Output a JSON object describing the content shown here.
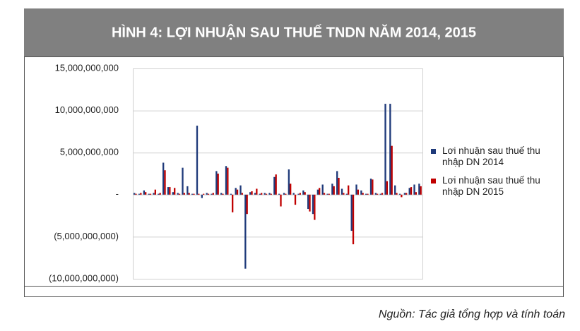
{
  "chart_data": {
    "type": "bar",
    "title": "HÌNH 4: LỢI NHUẬN SAU THUẾ TNDN NĂM 2014, 2015",
    "source": "Nguồn:  Tác giả tổng hợp và tính toán",
    "categories": [
      null,
      null,
      null,
      null,
      null,
      null,
      null,
      null,
      null,
      null,
      null,
      null,
      null,
      null,
      null,
      null,
      null,
      null,
      null,
      null,
      null,
      null,
      null,
      null,
      null,
      null,
      null,
      null,
      null,
      null,
      null,
      null,
      null,
      null,
      null,
      null,
      null,
      null,
      null,
      null,
      null,
      null,
      null,
      null,
      null,
      null,
      null,
      null,
      null,
      null,
      null,
      null,
      null,
      null,
      null,
      null,
      null,
      null,
      null,
      null
    ],
    "series": [
      {
        "name": "Lơi nhuận sau thuế thu nhập DN 2014",
        "color": "#1f3a7a",
        "values": [
          200000000,
          100000000,
          500000000,
          100000000,
          200000000,
          100000000,
          3800000000,
          900000000,
          300000000,
          200000000,
          3200000000,
          1000000000,
          100000000,
          8200000000,
          -400000000,
          200000000,
          100000000,
          2800000000,
          200000000,
          3400000000,
          100000000,
          800000000,
          1100000000,
          -8800000000,
          300000000,
          200000000,
          100000000,
          200000000,
          200000000,
          2100000000,
          100000000,
          200000000,
          3000000000,
          200000000,
          100000000,
          500000000,
          -1700000000,
          -2300000000,
          600000000,
          1200000000,
          100000000,
          1300000000,
          2800000000,
          700000000,
          100000000,
          -4300000000,
          1200000000,
          500000000,
          100000000,
          1900000000,
          200000000,
          100000000,
          10800000000,
          10800000000,
          1100000000,
          100000000,
          200000000,
          800000000,
          1200000000,
          1300000000
        ]
      },
      {
        "name": "Lơi nhuận sau thuế thu nhập DN 2015",
        "color": "#c00000",
        "values": [
          100000000,
          200000000,
          300000000,
          100000000,
          600000000,
          200000000,
          2900000000,
          900000000,
          800000000,
          100000000,
          200000000,
          200000000,
          100000000,
          100000000,
          100000000,
          100000000,
          200000000,
          2500000000,
          100000000,
          3200000000,
          -2100000000,
          600000000,
          200000000,
          -2300000000,
          400000000,
          700000000,
          200000000,
          100000000,
          100000000,
          2400000000,
          -1400000000,
          100000000,
          1300000000,
          -1200000000,
          200000000,
          300000000,
          -2000000000,
          -3000000000,
          800000000,
          200000000,
          100000000,
          1000000000,
          2000000000,
          200000000,
          1100000000,
          -5900000000,
          600000000,
          200000000,
          100000000,
          1800000000,
          100000000,
          200000000,
          1600000000,
          5800000000,
          200000000,
          -300000000,
          200000000,
          900000000,
          300000000,
          1000000000
        ]
      }
    ],
    "ylim": [
      -10000000000,
      15000000000
    ],
    "yticks": [
      {
        "value": -10000000000,
        "label": "(10,000,000,000)"
      },
      {
        "value": -5000000000,
        "label": "(5,000,000,000)"
      },
      {
        "value": 0,
        "label": "-"
      },
      {
        "value": 5000000000,
        "label": "5,000,000,000"
      },
      {
        "value": 10000000000,
        "label": "10,000,000,000"
      },
      {
        "value": 15000000000,
        "label": "15,000,000,000"
      }
    ],
    "grid": true,
    "legend": "right"
  }
}
